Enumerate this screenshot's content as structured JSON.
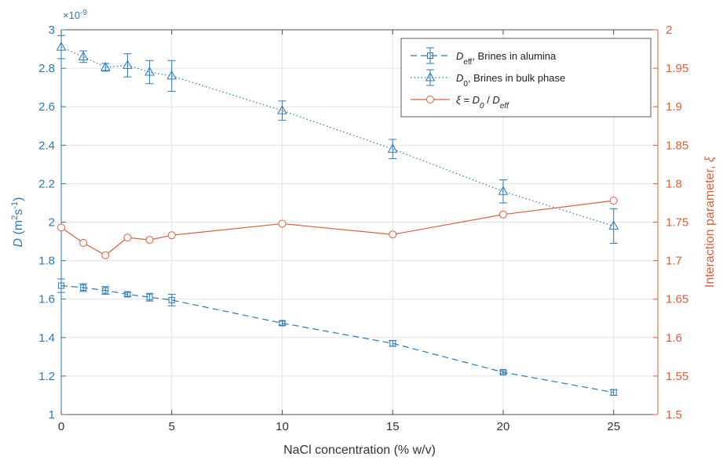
{
  "chart_data": {
    "type": "line",
    "xlabel": "NaCl concentration (% w/v)",
    "ylabel_left": "D (m²s⁻¹)",
    "ylabel_right": "Interaction parameter, ξ",
    "left_exponent": "×10⁻⁹",
    "xlim": [
      0,
      27
    ],
    "ylim_left": [
      1.0,
      3.0
    ],
    "ylim_right": [
      1.5,
      2.0
    ],
    "x_ticks": [
      0,
      5,
      10,
      15,
      20,
      25
    ],
    "x_tick_labels": [
      "0",
      "5",
      "10",
      "15",
      "20",
      "25"
    ],
    "y_left_ticks": [
      1,
      1.2,
      1.4,
      1.6,
      1.8,
      2,
      2.2,
      2.4,
      2.6,
      2.8,
      3
    ],
    "y_left_tick_labels": [
      "1",
      "1.2",
      "1.4",
      "1.6",
      "1.8",
      "2",
      "2.2",
      "2.4",
      "2.6",
      "2.8",
      "3"
    ],
    "y_right_ticks": [
      1.5,
      1.55,
      1.6,
      1.65,
      1.7,
      1.75,
      1.8,
      1.85,
      1.9,
      1.95,
      2
    ],
    "y_right_tick_labels": [
      "1.5",
      "1.55",
      "1.6",
      "1.65",
      "1.7",
      "1.75",
      "1.8",
      "1.85",
      "1.9",
      "1.95",
      "2"
    ],
    "grid": true,
    "legend_position": "top-right",
    "colors": {
      "left": "#2a7ab8",
      "right": "#d9603b"
    },
    "series": [
      {
        "name": "D_eff, Brines in alumina",
        "legend_label": "Deff, Brines in alumina",
        "axis": "left",
        "marker": "square",
        "line": "dashed",
        "x": [
          0,
          1,
          2,
          3,
          4,
          5,
          10,
          15,
          20,
          25
        ],
        "y": [
          1.67,
          1.66,
          1.645,
          1.625,
          1.61,
          1.595,
          1.475,
          1.37,
          1.22,
          1.115
        ],
        "err": [
          0.035,
          0.02,
          0.02,
          0.01,
          0.02,
          0.03,
          0.01,
          0.015,
          0.008,
          0.015
        ]
      },
      {
        "name": "D_0, Brines in bulk phase",
        "legend_label": "D0, Brines in bulk phase",
        "axis": "left",
        "marker": "triangle",
        "line": "dotted",
        "x": [
          0,
          1,
          2,
          3,
          4,
          5,
          10,
          15,
          20,
          25
        ],
        "y": [
          2.91,
          2.86,
          2.805,
          2.815,
          2.78,
          2.76,
          2.58,
          2.38,
          2.16,
          1.98
        ],
        "err": [
          0.06,
          0.03,
          0.02,
          0.06,
          0.06,
          0.08,
          0.05,
          0.05,
          0.06,
          0.09
        ]
      },
      {
        "name": "ξ = D_0 / D_eff",
        "legend_label": "ξ = D0 / Deff",
        "axis": "right",
        "marker": "circle",
        "line": "solid",
        "x": [
          0,
          1,
          2,
          3,
          4,
          5,
          10,
          15,
          20,
          25
        ],
        "y": [
          1.743,
          1.723,
          1.707,
          1.73,
          1.727,
          1.733,
          1.748,
          1.734,
          1.76,
          1.778
        ]
      }
    ],
    "legend": {
      "entries": [
        {
          "main": "D",
          "sub": "eff",
          "rest": ", Brines in alumina",
          "italic_main": true
        },
        {
          "main": "D",
          "sub": "0",
          "rest": ", Brines in bulk phase",
          "italic_main": true
        },
        {
          "pre": "ξ = ",
          "d0": "D",
          "d0sub": "0",
          "mid": " / ",
          "d1": "D",
          "d1sub": "eff"
        }
      ]
    }
  }
}
